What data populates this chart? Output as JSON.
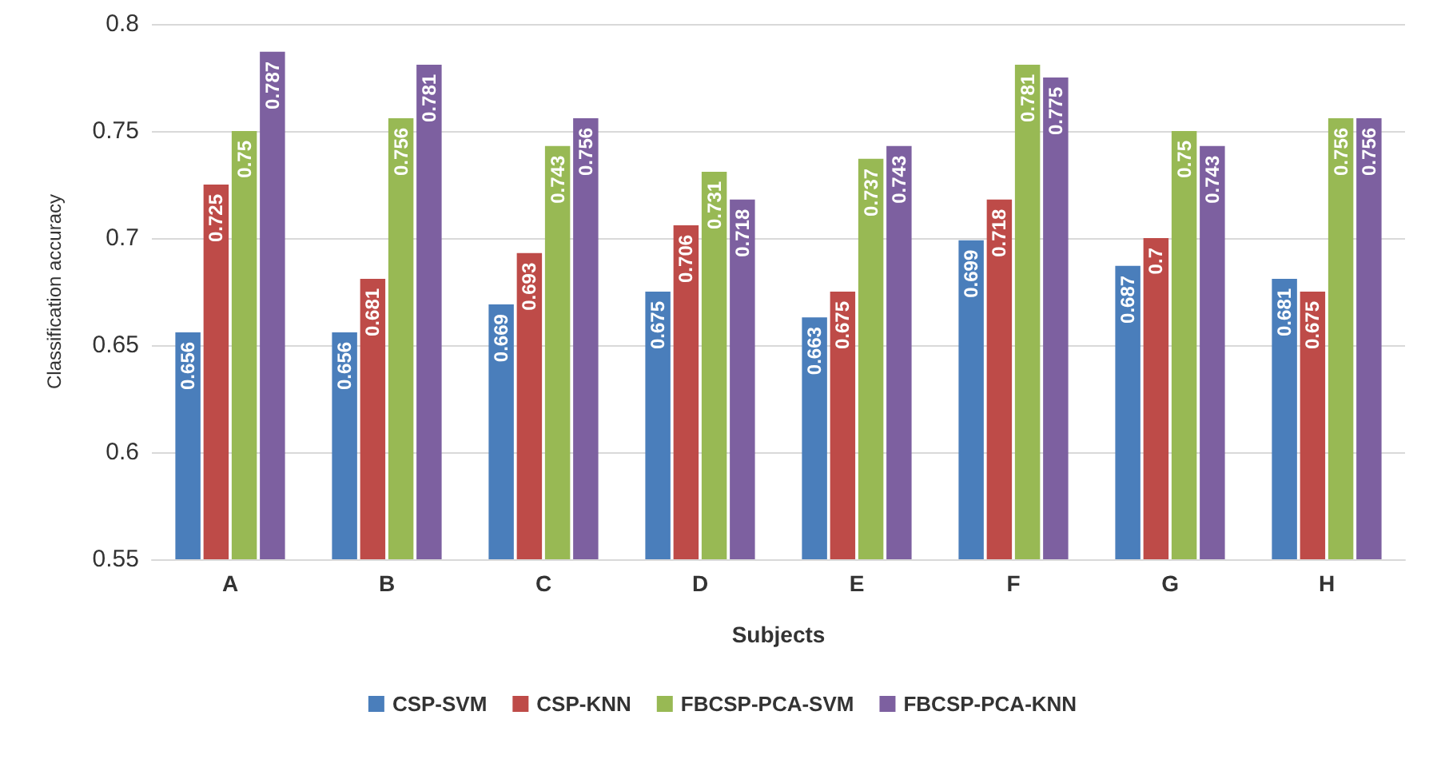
{
  "chart_data": {
    "type": "bar",
    "xlabel": "Subjects",
    "ylabel": "Classification accuracy",
    "categories": [
      "A",
      "B",
      "C",
      "D",
      "E",
      "F",
      "G",
      "H"
    ],
    "series": [
      {
        "name": "CSP-SVM",
        "color": "#4a7ebb",
        "values": [
          0.656,
          0.656,
          0.669,
          0.675,
          0.663,
          0.699,
          0.687,
          0.681
        ]
      },
      {
        "name": "CSP-KNN",
        "color": "#be4b48",
        "values": [
          0.725,
          0.681,
          0.693,
          0.706,
          0.675,
          0.718,
          0.7,
          0.675
        ]
      },
      {
        "name": "FBCSP-PCA-SVM",
        "color": "#98b954",
        "values": [
          0.75,
          0.756,
          0.743,
          0.731,
          0.737,
          0.781,
          0.75,
          0.756
        ]
      },
      {
        "name": "FBCSP-PCA-KNN",
        "color": "#7d60a0",
        "values": [
          0.787,
          0.781,
          0.756,
          0.718,
          0.743,
          0.775,
          0.743,
          0.756
        ]
      }
    ],
    "ylim": [
      0.55,
      0.8
    ],
    "yticks": [
      0.55,
      0.6,
      0.65,
      0.7,
      0.75,
      0.8
    ],
    "grid": "y",
    "legend": "bottom",
    "data_labels": true
  }
}
